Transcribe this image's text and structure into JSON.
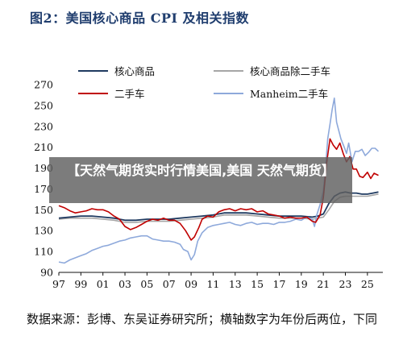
{
  "colors": {
    "core": "#1f3a60",
    "core_ex_used": "#a6a6a6",
    "used": "#c00000",
    "manheim": "#8ea9db",
    "banner_bg": "#5f5f5f",
    "title": "#1f3d6e"
  },
  "banner_text": "【天然气期货实时行情美国,美国 天然气期货】",
  "chart_data": {
    "type": "line",
    "title": "图2：美国核心商品 CPI 及相关指数",
    "source_note": "数据来源：彭博、东吴证券研究所；横轴数字为年份后两位，下同",
    "x_ticks": [
      "97",
      "99",
      "01",
      "03",
      "05",
      "07",
      "09",
      "11",
      "13",
      "15",
      "17",
      "19",
      "21",
      "23",
      "25"
    ],
    "y_ticks": [
      90,
      110,
      130,
      150,
      170,
      190,
      210,
      230,
      250,
      270
    ],
    "xlim": [
      1997,
      2026.4
    ],
    "ylim": [
      90,
      270
    ],
    "legend_position": "top",
    "grid": false,
    "series": [
      {
        "name": "核心商品",
        "color_key": "core",
        "x": [
          1997,
          1998,
          1999,
          2000,
          2001,
          2002,
          2003,
          2004,
          2005,
          2006,
          2007,
          2008,
          2009,
          2010,
          2011,
          2012,
          2013,
          2014,
          2015,
          2016,
          2017,
          2018,
          2019,
          2020,
          2020.5,
          2021,
          2021.5,
          2022,
          2022.5,
          2023,
          2023.5,
          2024,
          2024.5,
          2025,
          2025.5,
          2026
        ],
        "y": [
          142,
          143,
          144,
          144,
          143,
          142,
          140,
          140,
          141,
          141,
          141,
          142,
          143,
          144,
          145,
          147,
          147,
          147,
          146,
          145,
          144,
          144,
          144,
          143,
          144,
          146,
          156,
          163,
          166,
          167,
          166,
          166,
          165,
          165,
          166,
          167
        ]
      },
      {
        "name": "核心商品除二手车",
        "color_key": "core_ex_used",
        "x": [
          1997,
          1998,
          1999,
          2000,
          2001,
          2002,
          2003,
          2004,
          2005,
          2006,
          2007,
          2008,
          2009,
          2010,
          2011,
          2012,
          2013,
          2014,
          2015,
          2016,
          2017,
          2018,
          2019,
          2020,
          2020.5,
          2021,
          2021.5,
          2022,
          2022.5,
          2023,
          2023.5,
          2024,
          2024.5,
          2025,
          2025.5,
          2026
        ],
        "y": [
          141,
          142,
          142,
          142,
          141,
          140,
          138,
          138,
          139,
          139,
          139,
          140,
          141,
          142,
          143,
          145,
          145,
          145,
          144,
          143,
          142,
          142,
          142,
          141,
          142,
          143,
          150,
          158,
          162,
          163,
          163,
          163,
          163,
          163,
          164,
          165
        ]
      },
      {
        "name": "二手车",
        "color_key": "used",
        "x": [
          1997,
          1997.5,
          1998,
          1998.5,
          1999,
          1999.5,
          2000,
          2000.5,
          2001,
          2001.5,
          2002,
          2002.5,
          2003,
          2003.5,
          2004,
          2004.5,
          2005,
          2005.5,
          2006,
          2006.5,
          2007,
          2007.5,
          2008,
          2008.5,
          2009,
          2009.3,
          2009.7,
          2010,
          2010.5,
          2011,
          2011.5,
          2012,
          2012.5,
          2013,
          2013.5,
          2014,
          2014.5,
          2015,
          2015.5,
          2016,
          2016.5,
          2017,
          2017.5,
          2018,
          2018.5,
          2019,
          2019.5,
          2020,
          2020.3,
          2020.7,
          2021,
          2021.3,
          2021.6,
          2021.9,
          2022.2,
          2022.5,
          2022.8,
          2023.1,
          2023.4,
          2023.7,
          2024,
          2024.3,
          2024.6,
          2025,
          2025.3,
          2025.6,
          2026
        ],
        "y": [
          154,
          152,
          149,
          147,
          148,
          149,
          151,
          150,
          150,
          148,
          144,
          141,
          134,
          131,
          133,
          136,
          139,
          141,
          140,
          142,
          140,
          140,
          137,
          130,
          121,
          124,
          133,
          141,
          144,
          143,
          148,
          150,
          151,
          149,
          151,
          150,
          151,
          148,
          149,
          146,
          145,
          144,
          142,
          143,
          142,
          142,
          143,
          139,
          138,
          145,
          162,
          195,
          218,
          212,
          208,
          214,
          204,
          196,
          201,
          189,
          189,
          182,
          181,
          186,
          180,
          185,
          183
        ]
      },
      {
        "name": "Manheim二手车",
        "color_key": "manheim",
        "x": [
          1997,
          1997.5,
          1998,
          1998.5,
          1999,
          1999.5,
          2000,
          2000.5,
          2001,
          2001.5,
          2002,
          2002.5,
          2003,
          2003.5,
          2004,
          2004.5,
          2005,
          2005.5,
          2006,
          2006.5,
          2007,
          2007.5,
          2008,
          2008.3,
          2008.7,
          2009,
          2009.3,
          2009.6,
          2010,
          2010.5,
          2011,
          2011.5,
          2012,
          2012.5,
          2013,
          2013.5,
          2014,
          2014.5,
          2015,
          2015.5,
          2016,
          2016.5,
          2017,
          2017.5,
          2018,
          2018.5,
          2019,
          2019.5,
          2020,
          2020.2,
          2020.4,
          2020.7,
          2021,
          2021.2,
          2021.4,
          2021.6,
          2021.8,
          2022,
          2022.2,
          2022.4,
          2022.6,
          2022.9,
          2023.1,
          2023.3,
          2023.6,
          2023.9,
          2024.2,
          2024.5,
          2024.8,
          2025.1,
          2025.4,
          2025.7,
          2026
        ],
        "y": [
          100,
          99,
          102,
          104,
          106,
          108,
          111,
          113,
          115,
          116,
          118,
          120,
          121,
          123,
          124,
          125,
          125,
          122,
          121,
          120,
          120,
          119,
          117,
          112,
          110,
          102,
          107,
          120,
          128,
          133,
          135,
          136,
          137,
          138,
          136,
          135,
          137,
          138,
          136,
          137,
          137,
          136,
          138,
          138,
          139,
          141,
          140,
          143,
          141,
          134,
          145,
          155,
          168,
          190,
          218,
          232,
          246,
          257,
          234,
          226,
          218,
          210,
          204,
          214,
          196,
          206,
          206,
          208,
          202,
          205,
          209,
          209,
          206
        ]
      }
    ]
  }
}
